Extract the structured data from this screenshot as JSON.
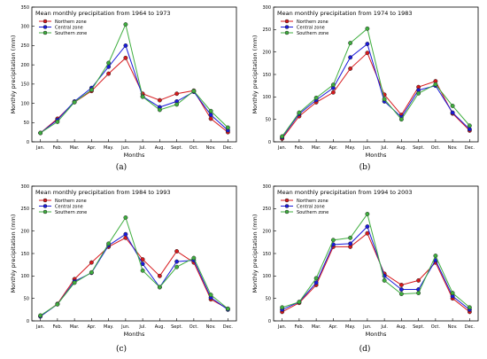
{
  "chart_data": [
    {
      "type": "line",
      "title": "Mean monthly precipitation from 1964 to 1973",
      "caption": "(a)",
      "xlabel": "Months",
      "ylabel": "Monthly precipitation (mm)",
      "categories": [
        "Jan.",
        "Feb.",
        "Mar.",
        "Apr.",
        "May.",
        "Jun.",
        "Jul.",
        "Aug.",
        "Sept.",
        "Oct.",
        "Nov.",
        "Dec."
      ],
      "ylim": [
        0,
        350
      ],
      "yticks": [
        0,
        50,
        100,
        150,
        200,
        250,
        300,
        350
      ],
      "legend_position": "top-left",
      "series": [
        {
          "name": "Northern zone",
          "color": "#d7191c",
          "values": [
            23,
            60,
            103,
            132,
            177,
            218,
            125,
            108,
            125,
            133,
            60,
            25
          ]
        },
        {
          "name": "Central zone",
          "color": "#1a1adb",
          "values": [
            23,
            57,
            105,
            140,
            195,
            250,
            118,
            90,
            105,
            130,
            70,
            30
          ]
        },
        {
          "name": "Southern zone",
          "color": "#3fae3f",
          "values": [
            23,
            52,
            103,
            135,
            205,
            305,
            117,
            83,
            97,
            132,
            80,
            37
          ]
        }
      ]
    },
    {
      "type": "line",
      "title": "Mean monthly precipitation from 1974 to 1983",
      "caption": "(b)",
      "xlabel": "Months",
      "ylabel": "Monthly precipitation (mm)",
      "categories": [
        "Jan.",
        "Feb.",
        "Mar.",
        "Apr.",
        "May.",
        "Jun.",
        "Jul.",
        "Aug.",
        "Sept.",
        "Oct.",
        "Nov.",
        "Dec."
      ],
      "ylim": [
        0,
        300
      ],
      "yticks": [
        0,
        50,
        100,
        150,
        200,
        250,
        300
      ],
      "legend_position": "top-left",
      "series": [
        {
          "name": "Northern zone",
          "color": "#d7191c",
          "values": [
            7,
            57,
            88,
            110,
            163,
            198,
            105,
            60,
            122,
            135,
            63,
            25
          ]
        },
        {
          "name": "Central zone",
          "color": "#1a1adb",
          "values": [
            10,
            62,
            93,
            120,
            188,
            218,
            90,
            55,
            115,
            125,
            65,
            28
          ]
        },
        {
          "name": "Southern zone",
          "color": "#3fae3f",
          "values": [
            12,
            65,
            98,
            127,
            220,
            252,
            95,
            50,
            108,
            128,
            80,
            36
          ]
        }
      ]
    },
    {
      "type": "line",
      "title": "Mean monthly precipitation from 1984 to 1993",
      "caption": "(c)",
      "xlabel": "Months",
      "ylabel": "Monthly precipitation (mm)",
      "categories": [
        "Jan.",
        "Feb.",
        "Mar.",
        "Apr.",
        "May.",
        "Jun.",
        "Jul.",
        "Aug.",
        "Sept.",
        "Oct.",
        "Nov.",
        "Dec."
      ],
      "ylim": [
        0,
        300
      ],
      "yticks": [
        0,
        50,
        100,
        150,
        200,
        250,
        300
      ],
      "legend_position": "top-left",
      "series": [
        {
          "name": "Northern zone",
          "color": "#d7191c",
          "values": [
            10,
            38,
            93,
            130,
            165,
            185,
            137,
            100,
            155,
            130,
            48,
            27
          ]
        },
        {
          "name": "Central zone",
          "color": "#1a1adb",
          "values": [
            10,
            37,
            88,
            107,
            168,
            193,
            127,
            75,
            132,
            135,
            52,
            25
          ]
        },
        {
          "name": "Southern zone",
          "color": "#3fae3f",
          "values": [
            12,
            37,
            85,
            108,
            172,
            230,
            112,
            75,
            120,
            140,
            58,
            27
          ]
        }
      ]
    },
    {
      "type": "line",
      "title": "Mean monthly precipitation from 1994 to 2003",
      "caption": "(d)",
      "xlabel": "Months",
      "ylabel": "Monthly precipitation (mm)",
      "categories": [
        "Jan.",
        "Feb.",
        "Mar.",
        "Apr.",
        "May.",
        "Jun.",
        "Jul.",
        "Aug.",
        "Sept.",
        "Oct.",
        "Nov.",
        "Dec."
      ],
      "ylim": [
        0,
        300
      ],
      "yticks": [
        0,
        50,
        100,
        150,
        200,
        250,
        300
      ],
      "legend_position": "top-left",
      "series": [
        {
          "name": "Northern zone",
          "color": "#d7191c",
          "values": [
            20,
            40,
            80,
            165,
            165,
            195,
            105,
            80,
            90,
            130,
            50,
            20
          ]
        },
        {
          "name": "Central zone",
          "color": "#1a1adb",
          "values": [
            25,
            42,
            85,
            170,
            172,
            210,
            100,
            70,
            70,
            135,
            55,
            25
          ]
        },
        {
          "name": "Southern zone",
          "color": "#3fae3f",
          "values": [
            30,
            42,
            95,
            180,
            185,
            238,
            90,
            60,
            62,
            145,
            62,
            30
          ]
        }
      ]
    }
  ]
}
